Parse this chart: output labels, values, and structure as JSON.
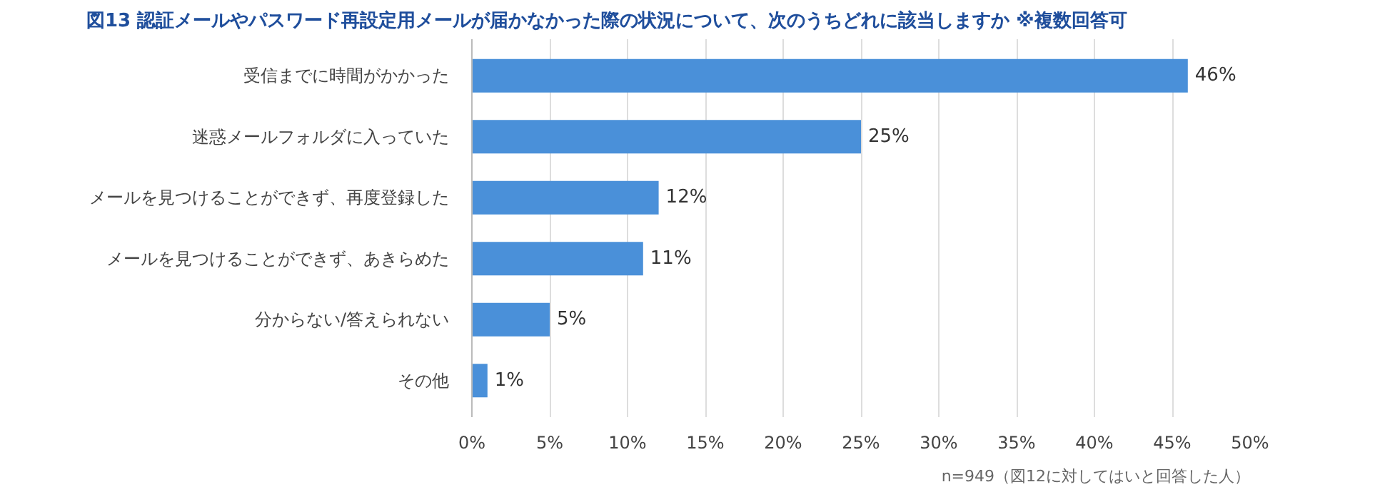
{
  "chart_data": {
    "type": "bar",
    "orientation": "horizontal",
    "title": "図13  認証メールやパスワード再設定用メールが届かなかった際の状況について、次のうちどれに該当しますか  ※複数回答可",
    "categories": [
      "受信までに時間がかかった",
      "迷惑メールフォルダに入っていた",
      "メールを見つけることができず、再度登録した",
      "メールを見つけることができず、あきらめた",
      "分からない/答えられない",
      "その他"
    ],
    "values": [
      46,
      25,
      12,
      11,
      5,
      1
    ],
    "color": "#4a90d9",
    "value_labels": [
      "46%",
      "25%",
      "12%",
      "11%",
      "5%",
      "1%"
    ],
    "xlim": [
      0,
      50
    ],
    "xticks": [
      {
        "value": 0,
        "label": "0%"
      },
      {
        "value": 5,
        "label": "5%"
      },
      {
        "value": 10,
        "label": "10%"
      },
      {
        "value": 15,
        "label": "15%"
      },
      {
        "value": 20,
        "label": "20%"
      },
      {
        "value": 25,
        "label": "25%"
      },
      {
        "value": 30,
        "label": "30%"
      },
      {
        "value": 35,
        "label": "35%"
      },
      {
        "value": 40,
        "label": "40%"
      },
      {
        "value": 45,
        "label": "45%"
      },
      {
        "value": 50,
        "label": "50%"
      }
    ],
    "grid": "x",
    "annotations": [
      "n=949（図12に対してはいと回答した人）"
    ]
  }
}
